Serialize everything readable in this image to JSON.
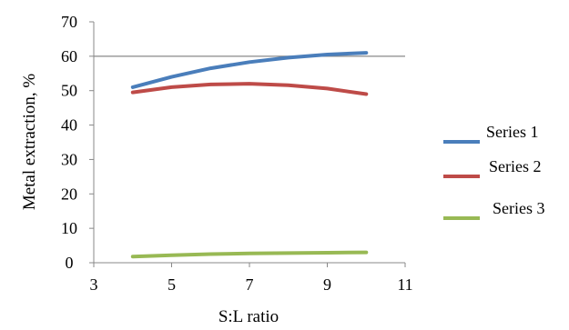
{
  "chart_data": {
    "type": "line",
    "xlabel": "S:L ratio",
    "ylabel": "Metal extraction, %",
    "xlim": [
      3,
      11
    ],
    "ylim": [
      0,
      70
    ],
    "xticks": [
      3,
      5,
      7,
      9,
      11
    ],
    "yticks": [
      0,
      10,
      20,
      30,
      40,
      50,
      60,
      70
    ],
    "gridlines": [
      60
    ],
    "legend_position": "right",
    "series": [
      {
        "name": "Series 1",
        "color": "#4a7ebb",
        "x": [
          4,
          5,
          6,
          7,
          8,
          9,
          10
        ],
        "y": [
          51,
          54,
          56.5,
          58.3,
          59.6,
          60.5,
          61
        ]
      },
      {
        "name": "Series 2",
        "color": "#be4b48",
        "x": [
          4,
          5,
          6,
          7,
          8,
          9,
          10
        ],
        "y": [
          49.5,
          51,
          51.8,
          52,
          51.6,
          50.6,
          49
        ]
      },
      {
        "name": "Series 3",
        "color": "#98b954",
        "x": [
          4,
          5,
          6,
          7,
          8,
          9,
          10
        ],
        "y": [
          1.8,
          2.2,
          2.5,
          2.7,
          2.8,
          2.9,
          3
        ]
      }
    ]
  }
}
